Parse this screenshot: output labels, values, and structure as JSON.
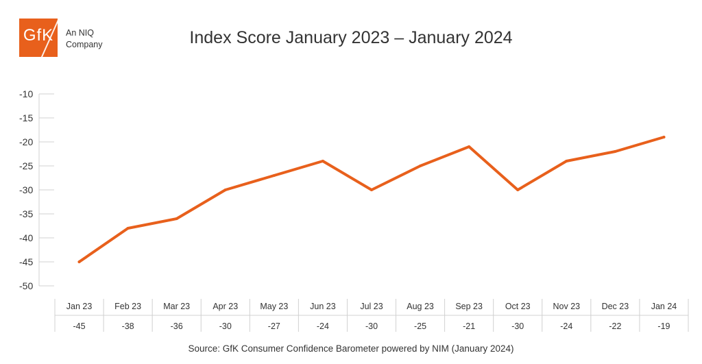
{
  "brand": {
    "logo_text": "GfK",
    "tagline_line1": "An NIQ",
    "tagline_line2": "Company",
    "accent_color": "#e8601c"
  },
  "chart_data": {
    "type": "line",
    "title": "Index Score January 2023 – January 2024",
    "categories": [
      "Jan 23",
      "Feb 23",
      "Mar 23",
      "Apr 23",
      "May 23",
      "Jun 23",
      "Jul 23",
      "Aug 23",
      "Sep 23",
      "Oct 23",
      "Nov 23",
      "Dec 23",
      "Jan 24"
    ],
    "series": [
      {
        "values": [
          -45,
          -38,
          -36,
          -30,
          -27,
          -24,
          -30,
          -25,
          -21,
          -30,
          -24,
          -22,
          -19
        ],
        "color": "#e8601c"
      }
    ],
    "ylim": [
      -50,
      -10
    ],
    "yticks": [
      -10,
      -15,
      -20,
      -25,
      -30,
      -35,
      -40,
      -45,
      -50
    ],
    "xlabel": "",
    "ylabel": "",
    "data_table": true,
    "grid": false
  },
  "source": "Source: GfK Consumer Confidence Barometer powered by NIM (January 2024)"
}
